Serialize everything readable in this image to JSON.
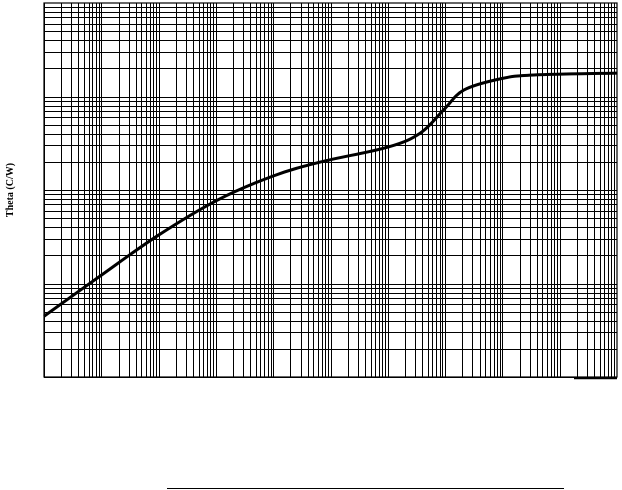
{
  "chart_data": {
    "type": "line",
    "title": "",
    "xlabel": "",
    "ylabel": "Theta (C/W)",
    "xscale": "log",
    "yscale": "log",
    "xlim_decades": [
      0,
      10
    ],
    "ylim_decades": [
      0,
      4
    ],
    "grid": true,
    "legend": "none",
    "line_color": "#000000",
    "series": [
      {
        "x_decades": [
          0,
          0.98,
          1.98,
          3.02,
          4.0,
          4.83,
          6.01,
          6.57,
          6.98,
          7.33,
          7.97,
          8.55,
          10.0
        ],
        "y_decades": [
          0.65,
          1.08,
          1.51,
          1.89,
          2.15,
          2.3,
          2.46,
          2.61,
          2.86,
          3.07,
          3.19,
          3.23,
          3.25
        ]
      }
    ]
  }
}
